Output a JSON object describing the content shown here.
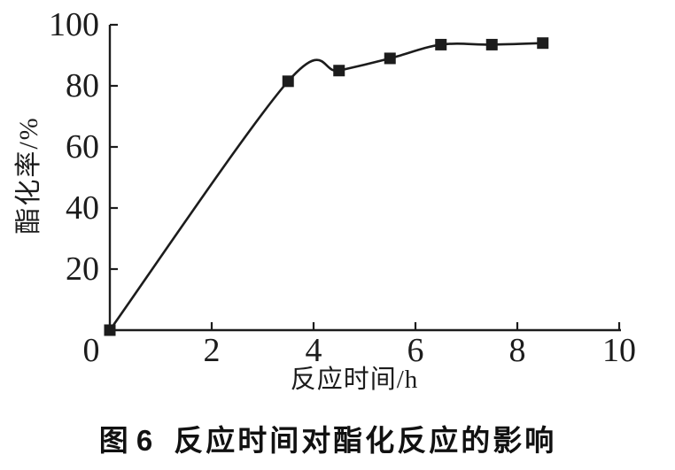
{
  "figure_caption": {
    "label": "图 6",
    "title": "反应时间对酯化反应的影响",
    "full": "图 6　反应时间对酯化反应的影响"
  },
  "chart_data": {
    "type": "line",
    "title": "",
    "xlabel": "反应时间/h",
    "ylabel": "酯化率/%",
    "series": [
      {
        "name": "酯化率",
        "x": [
          0,
          3.5,
          4.5,
          5.5,
          6.5,
          7.5,
          8.5
        ],
        "y": [
          0,
          81.5,
          85,
          89,
          93.5,
          93.5,
          94
        ]
      }
    ],
    "xlim": [
      0,
      10
    ],
    "ylim": [
      0,
      100
    ],
    "xticks": [
      0,
      2,
      4,
      6,
      8,
      10
    ],
    "yticks": [
      20,
      40,
      60,
      80,
      100
    ],
    "xtick_labels": [
      "0",
      "2",
      "4",
      "6",
      "8",
      "10"
    ],
    "ytick_labels": [
      "20",
      "40",
      "60",
      "80",
      "100"
    ],
    "grid": false,
    "legend_position": "none",
    "line_style": "smooth",
    "marker": "filled-square",
    "line_color": "#1c1c1c",
    "marker_color": "#1c1c1c",
    "background_color": "#ffffff"
  }
}
